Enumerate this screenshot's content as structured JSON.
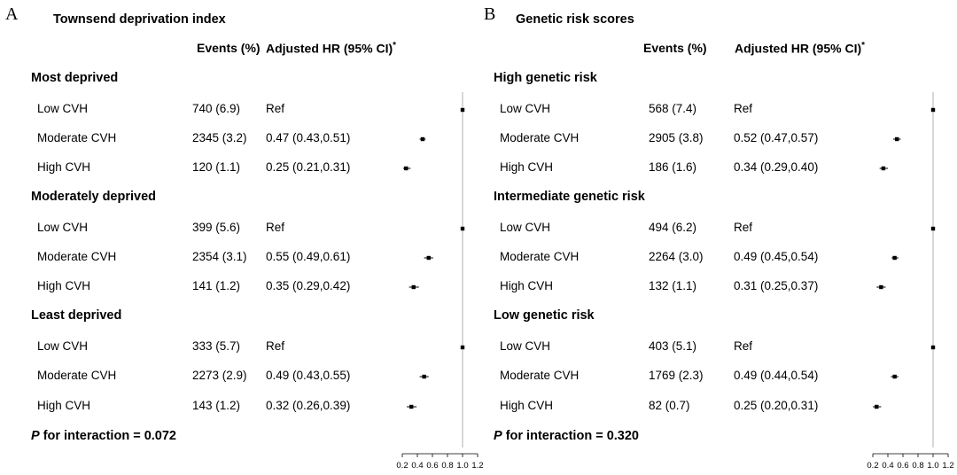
{
  "chart_data": [
    {
      "type": "forest",
      "letter": "A",
      "title": "Townsend deprivation index",
      "columns": {
        "events": "Events (%)",
        "hr": "Adjusted HR (95% CI)",
        "hr_mark": "*"
      },
      "groups": [
        {
          "label": "Most deprived",
          "rows": [
            {
              "label": "Low CVH",
              "events": "740 (6.9)",
              "hr_text": "Ref",
              "hr": 1.0,
              "lo": 1.0,
              "hi": 1.0
            },
            {
              "label": "Moderate CVH",
              "events": "2345 (3.2)",
              "hr_text": "0.47 (0.43,0.51)",
              "hr": 0.47,
              "lo": 0.43,
              "hi": 0.51
            },
            {
              "label": "High CVH",
              "events": "120 (1.1)",
              "hr_text": "0.25 (0.21,0.31)",
              "hr": 0.25,
              "lo": 0.21,
              "hi": 0.31
            }
          ]
        },
        {
          "label": "Moderately deprived",
          "rows": [
            {
              "label": "Low CVH",
              "events": "399 (5.6)",
              "hr_text": "Ref",
              "hr": 1.0,
              "lo": 1.0,
              "hi": 1.0
            },
            {
              "label": "Moderate CVH",
              "events": "2354 (3.1)",
              "hr_text": "0.55 (0.49,0.61)",
              "hr": 0.55,
              "lo": 0.49,
              "hi": 0.61
            },
            {
              "label": "High CVH",
              "events": "141 (1.2)",
              "hr_text": "0.35 (0.29,0.42)",
              "hr": 0.35,
              "lo": 0.29,
              "hi": 0.42
            }
          ]
        },
        {
          "label": "Least deprived",
          "rows": [
            {
              "label": "Low CVH",
              "events": "333 (5.7)",
              "hr_text": "Ref",
              "hr": 1.0,
              "lo": 1.0,
              "hi": 1.0
            },
            {
              "label": "Moderate CVH",
              "events": "2273 (2.9)",
              "hr_text": "0.49 (0.43,0.55)",
              "hr": 0.49,
              "lo": 0.43,
              "hi": 0.55
            },
            {
              "label": "High CVH",
              "events": "143 (1.2)",
              "hr_text": "0.32 (0.26,0.39)",
              "hr": 0.32,
              "lo": 0.26,
              "hi": 0.39
            }
          ]
        }
      ],
      "p_label": "P",
      "p_text": " for interaction = 0.072",
      "xlim": [
        0.2,
        1.2
      ],
      "x_ticks": [
        0.2,
        0.4,
        0.6,
        0.8,
        1.0,
        1.2
      ],
      "x_tick_labels": [
        "0.2",
        "0.4",
        "0.6",
        "0.8",
        "1.0",
        "1.2"
      ],
      "reference_line": 1.0
    },
    {
      "type": "forest",
      "letter": "B",
      "title": "Genetic risk scores",
      "columns": {
        "events": "Events (%)",
        "hr": "Adjusted HR (95% CI)",
        "hr_mark": "*"
      },
      "groups": [
        {
          "label": "High genetic risk",
          "rows": [
            {
              "label": "Low CVH",
              "events": "568 (7.4)",
              "hr_text": "Ref",
              "hr": 1.0,
              "lo": 1.0,
              "hi": 1.0
            },
            {
              "label": "Moderate CVH",
              "events": "2905 (3.8)",
              "hr_text": "0.52 (0.47,0.57)",
              "hr": 0.52,
              "lo": 0.47,
              "hi": 0.57
            },
            {
              "label": "High CVH",
              "events": "186 (1.6)",
              "hr_text": "0.34 (0.29,0.40)",
              "hr": 0.34,
              "lo": 0.29,
              "hi": 0.4
            }
          ]
        },
        {
          "label": "Intermediate genetic risk",
          "rows": [
            {
              "label": "Low CVH",
              "events": "494 (6.2)",
              "hr_text": "Ref",
              "hr": 1.0,
              "lo": 1.0,
              "hi": 1.0
            },
            {
              "label": "Moderate CVH",
              "events": "2264 (3.0)",
              "hr_text": "0.49 (0.45,0.54)",
              "hr": 0.49,
              "lo": 0.45,
              "hi": 0.54
            },
            {
              "label": "High CVH",
              "events": "132 (1.1)",
              "hr_text": "0.31 (0.25,0.37)",
              "hr": 0.31,
              "lo": 0.25,
              "hi": 0.37
            }
          ]
        },
        {
          "label": "Low genetic risk",
          "rows": [
            {
              "label": "Low CVH",
              "events": "403 (5.1)",
              "hr_text": "Ref",
              "hr": 1.0,
              "lo": 1.0,
              "hi": 1.0
            },
            {
              "label": "Moderate CVH",
              "events": "1769 (2.3)",
              "hr_text": "0.49 (0.44,0.54)",
              "hr": 0.49,
              "lo": 0.44,
              "hi": 0.54
            },
            {
              "label": "High CVH",
              "events": "82 (0.7)",
              "hr_text": "0.25 (0.20,0.31)",
              "hr": 0.25,
              "lo": 0.2,
              "hi": 0.31
            }
          ]
        }
      ],
      "p_label": "P",
      "p_text": " for interaction = 0.320",
      "xlim": [
        0.2,
        1.2
      ],
      "x_ticks": [
        0.2,
        0.4,
        0.6,
        0.8,
        1.0,
        1.2
      ],
      "x_tick_labels": [
        "0.2",
        "0.4",
        "0.6",
        "0.8",
        "1.0",
        "1.2"
      ],
      "reference_line": 1.0
    }
  ]
}
